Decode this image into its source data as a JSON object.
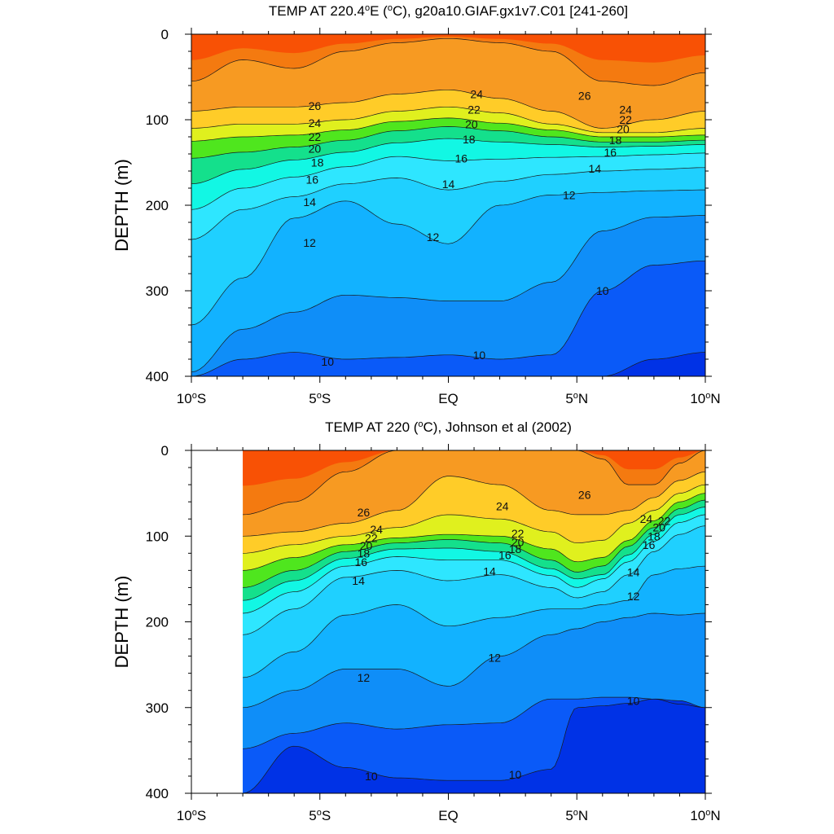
{
  "chart_data": [
    {
      "type": "contour",
      "title": "TEMP AT 220.4°E (°C), g20a10.GIAF.gx1v7.C01 [241-260]",
      "title_parts": {
        "pre": "TEMP AT 220.4",
        "sup1": "o",
        "mid": "E (",
        "sup2": "o",
        "post": "C), g20a10.GIAF.gx1v7.C01 [241-260]"
      },
      "xlabel": "",
      "ylabel": "DEPTH (m)",
      "xlim": [
        -10,
        10
      ],
      "ylim": [
        400,
        0
      ],
      "data_xlim": [
        -10,
        10
      ],
      "x_ticks": [
        {
          "value": -10,
          "label": "10",
          "sup": "o",
          "suffix": "S"
        },
        {
          "value": -5,
          "label": "5",
          "sup": "o",
          "suffix": "S"
        },
        {
          "value": 0,
          "label": "EQ",
          "sup": "",
          "suffix": ""
        },
        {
          "value": 5,
          "label": "5",
          "sup": "o",
          "suffix": "N"
        },
        {
          "value": 10,
          "label": "10",
          "sup": "o",
          "suffix": "N"
        }
      ],
      "y_ticks": [
        0,
        100,
        200,
        300,
        400
      ],
      "x": [
        -10,
        -8,
        -6,
        -4,
        -2,
        0,
        2,
        4,
        6,
        8,
        10
      ],
      "isotherm_depths": {
        "27": [
          55,
          30,
          40,
          20,
          10,
          5,
          10,
          20,
          55,
          60,
          45
        ],
        "26": [
          90,
          85,
          85,
          80,
          70,
          65,
          75,
          90,
          110,
          100,
          90
        ],
        "24": [
          110,
          105,
          105,
          100,
          90,
          85,
          92,
          105,
          115,
          115,
          110
        ],
        "22": [
          125,
          120,
          118,
          112,
          102,
          98,
          104,
          112,
          120,
          120,
          118
        ],
        "20": [
          145,
          138,
          132,
          124,
          113,
          108,
          113,
          120,
          126,
          126,
          124
        ],
        "18": [
          175,
          158,
          147,
          138,
          127,
          122,
          126,
          129,
          132,
          131,
          129
        ],
        "16": [
          205,
          180,
          167,
          155,
          143,
          148,
          146,
          144,
          143,
          141,
          139
        ],
        "14": [
          240,
          205,
          190,
          175,
          168,
          182,
          172,
          164,
          160,
          158,
          156
        ],
        "12": [
          340,
          285,
          215,
          195,
          222,
          245,
          200,
          188,
          185,
          183,
          182
        ],
        "11": [
          395,
          345,
          325,
          305,
          308,
          312,
          312,
          290,
          230,
          214,
          212
        ],
        "10": [
          400,
          380,
          372,
          380,
          378,
          375,
          380,
          375,
          300,
          270,
          265
        ],
        "9": [
          400,
          400,
          400,
          400,
          400,
          400,
          400,
          400,
          400,
          380,
          372
        ]
      },
      "contour_labels": [
        {
          "text": "26",
          "x": -5.2,
          "y": 84
        },
        {
          "text": "24",
          "x": -5.2,
          "y": 104
        },
        {
          "text": "22",
          "x": -5.2,
          "y": 120
        },
        {
          "text": "20",
          "x": -5.2,
          "y": 134
        },
        {
          "text": "18",
          "x": -5.1,
          "y": 150
        },
        {
          "text": "16",
          "x": -5.3,
          "y": 170
        },
        {
          "text": "14",
          "x": -5.4,
          "y": 196
        },
        {
          "text": "12",
          "x": -5.4,
          "y": 244
        },
        {
          "text": "10",
          "x": -4.7,
          "y": 383
        },
        {
          "text": "24",
          "x": 1.1,
          "y": 70
        },
        {
          "text": "22",
          "x": 1.0,
          "y": 88
        },
        {
          "text": "20",
          "x": 0.9,
          "y": 105
        },
        {
          "text": "18",
          "x": 0.8,
          "y": 123
        },
        {
          "text": "16",
          "x": 0.5,
          "y": 145
        },
        {
          "text": "14",
          "x": 0.0,
          "y": 175
        },
        {
          "text": "12",
          "x": -0.6,
          "y": 237
        },
        {
          "text": "10",
          "x": 1.2,
          "y": 375
        },
        {
          "text": "12",
          "x": 4.7,
          "y": 188
        },
        {
          "text": "14",
          "x": 5.7,
          "y": 157
        },
        {
          "text": "16",
          "x": 6.3,
          "y": 138
        },
        {
          "text": "18",
          "x": 6.5,
          "y": 124
        },
        {
          "text": "20",
          "x": 6.8,
          "y": 111
        },
        {
          "text": "22",
          "x": 6.9,
          "y": 100
        },
        {
          "text": "24",
          "x": 6.9,
          "y": 88
        },
        {
          "text": "26",
          "x": 5.3,
          "y": 72
        },
        {
          "text": "10",
          "x": 6.0,
          "y": 300
        }
      ]
    },
    {
      "type": "contour",
      "title": "TEMP AT 220 (°C), Johnson et al (2002)",
      "title_parts": {
        "pre": "TEMP AT 220 (",
        "sup1": "o",
        "mid": "",
        "sup2": "",
        "post": "C), Johnson et al (2002)"
      },
      "xlabel": "",
      "ylabel": "DEPTH (m)",
      "xlim": [
        -10,
        10
      ],
      "ylim": [
        400,
        0
      ],
      "data_xlim": [
        -8,
        10
      ],
      "x_ticks": [
        {
          "value": -10,
          "label": "10",
          "sup": "o",
          "suffix": "S"
        },
        {
          "value": -5,
          "label": "5",
          "sup": "o",
          "suffix": "S"
        },
        {
          "value": 0,
          "label": "EQ",
          "sup": "",
          "suffix": ""
        },
        {
          "value": 5,
          "label": "5",
          "sup": "o",
          "suffix": "N"
        },
        {
          "value": 10,
          "label": "10",
          "sup": "o",
          "suffix": "N"
        }
      ],
      "y_ticks": [
        0,
        100,
        200,
        300,
        400
      ],
      "x": [
        -8,
        -6,
        -4,
        -2,
        0,
        2,
        4,
        5,
        6,
        7,
        8,
        9,
        10
      ],
      "isotherm_depths": {
        "27": [
          75,
          60,
          25,
          0,
          0,
          0,
          0,
          0,
          10,
          40,
          40,
          15,
          0
        ],
        "26": [
          100,
          95,
          85,
          70,
          30,
          40,
          70,
          75,
          75,
          70,
          55,
          35,
          25
        ],
        "24": [
          120,
          110,
          100,
          90,
          75,
          80,
          95,
          108,
          105,
          85,
          70,
          50,
          40
        ],
        "22": [
          140,
          125,
          110,
          102,
          98,
          100,
          115,
          130,
          125,
          105,
          82,
          60,
          50
        ],
        "20": [
          160,
          140,
          118,
          108,
          104,
          108,
          128,
          142,
          135,
          112,
          90,
          68,
          58
        ],
        "18": [
          175,
          152,
          126,
          115,
          114,
          118,
          138,
          150,
          145,
          122,
          98,
          75,
          66
        ],
        "16": [
          190,
          165,
          135,
          124,
          128,
          128,
          146,
          160,
          150,
          130,
          106,
          84,
          75
        ],
        "14": [
          215,
          185,
          148,
          140,
          152,
          145,
          160,
          172,
          165,
          145,
          118,
          98,
          88
        ],
        "12": [
          265,
          235,
          192,
          180,
          205,
          195,
          185,
          185,
          180,
          175,
          145,
          138,
          135
        ],
        "11": [
          300,
          280,
          255,
          255,
          275,
          240,
          215,
          208,
          200,
          195,
          190,
          192,
          190
        ],
        "10": [
          348,
          330,
          318,
          325,
          320,
          318,
          290,
          290,
          288,
          288,
          290,
          296,
          300
        ],
        "9": [
          400,
          345,
          370,
          382,
          385,
          385,
          372,
          300,
          298,
          295,
          290,
          292,
          300
        ]
      },
      "contour_labels": [
        {
          "text": "26",
          "x": -3.3,
          "y": 72
        },
        {
          "text": "24",
          "x": -2.8,
          "y": 92
        },
        {
          "text": "22",
          "x": -3.0,
          "y": 102
        },
        {
          "text": "20",
          "x": -3.2,
          "y": 111
        },
        {
          "text": "18",
          "x": -3.3,
          "y": 120
        },
        {
          "text": "16",
          "x": -3.4,
          "y": 130
        },
        {
          "text": "14",
          "x": -3.5,
          "y": 152
        },
        {
          "text": "12",
          "x": -3.3,
          "y": 265
        },
        {
          "text": "10",
          "x": -3.0,
          "y": 380
        },
        {
          "text": "24",
          "x": 2.1,
          "y": 65
        },
        {
          "text": "22",
          "x": 2.7,
          "y": 97
        },
        {
          "text": "20",
          "x": 2.7,
          "y": 107
        },
        {
          "text": "18",
          "x": 2.6,
          "y": 115
        },
        {
          "text": "16",
          "x": 2.2,
          "y": 122
        },
        {
          "text": "14",
          "x": 1.6,
          "y": 141
        },
        {
          "text": "12",
          "x": 1.8,
          "y": 242
        },
        {
          "text": "10",
          "x": 2.6,
          "y": 378
        },
        {
          "text": "26",
          "x": 5.3,
          "y": 52
        },
        {
          "text": "24",
          "x": 7.7,
          "y": 80
        },
        {
          "text": "22",
          "x": 8.4,
          "y": 82
        },
        {
          "text": "20",
          "x": 8.2,
          "y": 90
        },
        {
          "text": "18",
          "x": 8.0,
          "y": 100
        },
        {
          "text": "16",
          "x": 7.8,
          "y": 110
        },
        {
          "text": "14",
          "x": 7.2,
          "y": 142
        },
        {
          "text": "12",
          "x": 7.2,
          "y": 170
        },
        {
          "text": "10",
          "x": 7.2,
          "y": 292
        }
      ]
    }
  ],
  "legend_colors": {
    "9": "#0032e6",
    "10": "#0a5af8",
    "11": "#0f8ef8",
    "12": "#12b2ff",
    "14": "#1fd0ff",
    "16": "#2ee6ff",
    "18": "#12f7e4",
    "20": "#14e08c",
    "22": "#4fe61e",
    "24": "#e0f01e",
    "26": "#ffcc28",
    "27": "#f79a22",
    "28": "#f47a10",
    "29": "#f84a04",
    "30": "#ff2000"
  }
}
